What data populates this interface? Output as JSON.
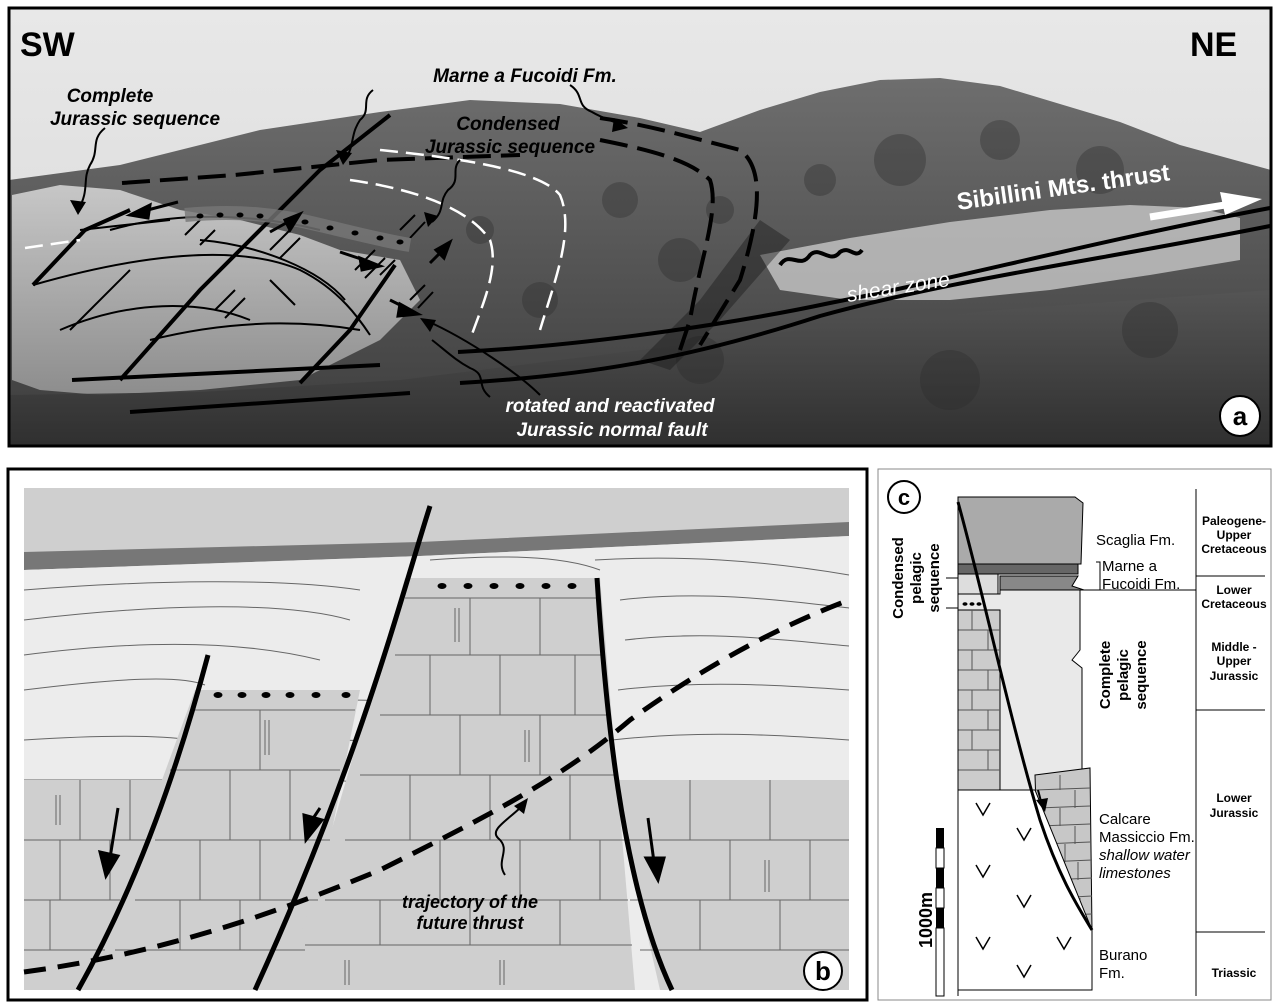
{
  "panel_a": {
    "corner_left": "SW",
    "corner_right": "NE",
    "complete_seq_line1": "Complete",
    "complete_seq_line2": "Jurassic sequence",
    "marne_label": "Marne a Fucoidi Fm.",
    "condensed_line1": "Condensed",
    "condensed_line2": "Jurassic sequence",
    "thrust_label": "Sibillini Mts. thrust",
    "shear_label": "shear zone",
    "fault_line1": "rotated and reactivated",
    "fault_line2": "Jurassic normal fault",
    "panel_letter": "a"
  },
  "panel_b": {
    "trajectory_line1": "trajectory of the",
    "trajectory_line2": "future thrust",
    "panel_letter": "b"
  },
  "panel_c": {
    "panel_letter": "c",
    "condensed_side_line1": "Condensed",
    "condensed_side_line2": "pelagic",
    "condensed_side_line3": "sequence",
    "complete_side_line1": "Complete",
    "complete_side_line2": "pelagic",
    "complete_side_line3": "sequence",
    "scaglia": "Scaglia Fm.",
    "marne_line1": "Marne a",
    "marne_line2": "Fucoidi Fm.",
    "calcare_line1": "Calcare",
    "calcare_line2": "Massiccio Fm.",
    "calcare_line3": "shallow water",
    "calcare_line4": "limestones",
    "burano_line1": "Burano",
    "burano_line2": "Fm.",
    "scale_label": "1000m",
    "ages": {
      "paleogene_line1": "Paleogene-",
      "paleogene_line2": "Upper",
      "paleogene_line3": "Cretaceous",
      "lower_cret_line1": "Lower",
      "lower_cret_line2": "Cretaceous",
      "mid_jur_line1": "Middle -",
      "mid_jur_line2": "Upper",
      "mid_jur_line3": "Jurassic",
      "low_jur_line1": "Lower",
      "low_jur_line2": "Jurassic",
      "triassic": "Triassic"
    }
  }
}
